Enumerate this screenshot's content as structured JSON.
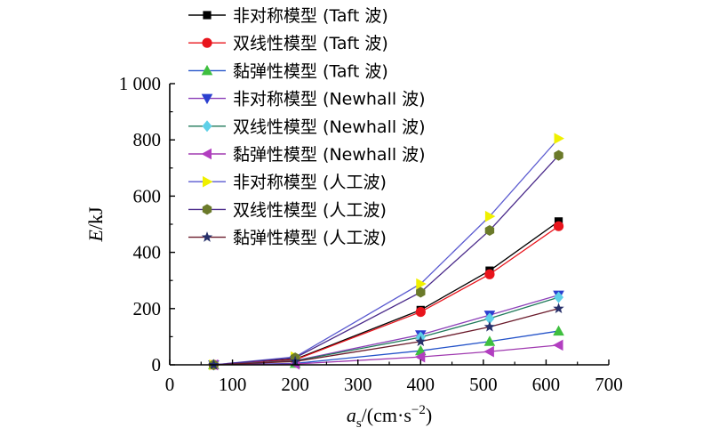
{
  "chart_data": {
    "type": "line",
    "xlabel": {
      "italic": "a",
      "sub": "s",
      "rest": "/(cm·s",
      "sup": "−2",
      "close": ")"
    },
    "ylabel": {
      "italic": "E",
      "rest": "/kJ"
    },
    "xlim": [
      0,
      700
    ],
    "ylim": [
      0,
      1000
    ],
    "x_ticks": [
      "0",
      "100",
      "200",
      "300",
      "400",
      "500",
      "600",
      "700"
    ],
    "y_ticks": [
      "0",
      "200",
      "400",
      "600",
      "800",
      "1 000"
    ],
    "x": [
      70,
      200,
      400,
      510,
      620
    ],
    "legend_position": "top-left",
    "series": [
      {
        "name": "非对称模型 (Taft 波)",
        "marker": "square",
        "color": "#000000",
        "line_color": "#000000",
        "values": [
          0,
          20,
          195,
          335,
          510
        ]
      },
      {
        "name": "双线性模型 (Taft 波)",
        "marker": "circle",
        "color": "#e8141c",
        "line_color": "#e8141c",
        "values": [
          0,
          18,
          188,
          322,
          493
        ]
      },
      {
        "name": "黏弹性模型 (Taft 波)",
        "marker": "triangle-up",
        "color": "#3fbf3f",
        "line_color": "#2453c9",
        "values": [
          0,
          5,
          50,
          83,
          120
        ]
      },
      {
        "name": "非对称模型 (Newhall 波)",
        "marker": "triangle-down",
        "color": "#2b3fcf",
        "line_color": "#8c3fb8",
        "values": [
          0,
          15,
          107,
          177,
          248
        ]
      },
      {
        "name": "双线性模型 (Newhall 波)",
        "marker": "diamond",
        "color": "#5ed0e8",
        "line_color": "#1f7a5a",
        "values": [
          0,
          14,
          98,
          165,
          240
        ]
      },
      {
        "name": "黏弹性模型 (Newhall 波)",
        "marker": "triangle-left",
        "color": "#b23ec0",
        "line_color": "#a03ab0",
        "values": [
          0,
          3,
          28,
          47,
          70
        ]
      },
      {
        "name": "非对称模型 (人工波)",
        "marker": "triangle-right",
        "color": "#f0f000",
        "line_color": "#5a5ad0",
        "values": [
          0,
          28,
          288,
          528,
          805
        ]
      },
      {
        "name": "双线性模型 (人工波)",
        "marker": "hexagon",
        "color": "#6b7a2a",
        "line_color": "#4a2a8a",
        "values": [
          0,
          25,
          258,
          478,
          745
        ]
      },
      {
        "name": "黏弹性模型 (人工波)",
        "marker": "star",
        "color": "#27306a",
        "line_color": "#6a1a2a",
        "values": [
          0,
          12,
          83,
          135,
          200
        ]
      }
    ]
  }
}
